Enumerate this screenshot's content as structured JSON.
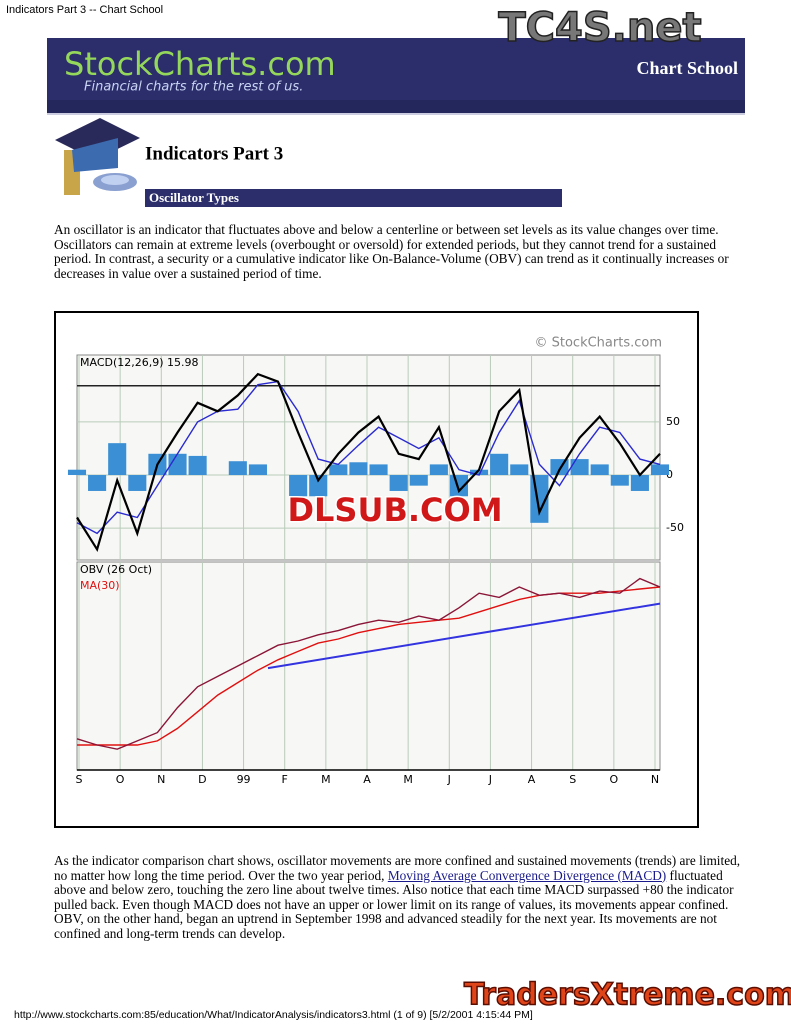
{
  "browser_header": "Indicators Part 3 -- Chart School",
  "banner": {
    "logo": "StockCharts.com",
    "tagline": "Financial charts for the rest of us.",
    "section": "Chart School"
  },
  "page": {
    "title": "Indicators Part 3",
    "subtitle": "Oscillator Types"
  },
  "intro": "An oscillator is an indicator that fluctuates above and below a centerline or between set levels as its value changes over time. Oscillators can remain at extreme levels (overbought or oversold) for extended periods, but they cannot trend for a sustained period. In contrast, a security or a cumulative indicator like On-Balance-Volume (OBV) can trend as it continually increases or decreases in value over a sustained period of time.",
  "discussion": {
    "before": "As the indicator comparison chart shows, oscillator movements are more confined and sustained movements (trends) are limited, no matter how long the time period. Over the two year period, ",
    "link": "Moving Average Convergence Divergence (MACD)",
    "after": " fluctuated above and below zero, touching the zero line about twelve times. Also notice that each time MACD surpassed +80 the indicator pulled back. Even though MACD does not have an upper or lower limit on its range of values, its movements appear confined. OBV, on the other hand, began an uptrend in September 1998 and advanced steadily for the next year. Its movements are not confined and long-term trends can develop."
  },
  "chart_data": {
    "type": "line",
    "copyright": "© StockCharts.com",
    "grid": true,
    "categories": [
      "S",
      "O",
      "N",
      "D",
      "99",
      "F",
      "M",
      "A",
      "M",
      "J",
      "J",
      "A",
      "S",
      "O",
      "N"
    ],
    "panels": [
      {
        "label": "MACD(12,26,9) 15.98",
        "ylim": [
          -80,
          113
        ],
        "yticks": [
          50,
          0,
          -50
        ],
        "hline": 84,
        "series": [
          {
            "type": "bar",
            "color": "#3b8fd4",
            "values": [
              5,
              -15,
              30,
              -15,
              20,
              20,
              18,
              0,
              13,
              10,
              0,
              -20,
              -20,
              10,
              12,
              10,
              -15,
              -10,
              10,
              -20,
              5,
              20,
              10,
              -45,
              15,
              15,
              10,
              -10,
              -15,
              10
            ]
          },
          {
            "type": "line",
            "color": "#2a2ad0",
            "values": [
              -45,
              -55,
              -35,
              -40,
              -10,
              20,
              50,
              60,
              62,
              85,
              88,
              60,
              15,
              10,
              28,
              45,
              35,
              25,
              35,
              5,
              0,
              40,
              70,
              10,
              -10,
              20,
              45,
              40,
              15,
              10
            ]
          },
          {
            "type": "line",
            "color": "#000000",
            "values": [
              -40,
              -70,
              -5,
              -55,
              10,
              40,
              68,
              60,
              75,
              95,
              88,
              40,
              -5,
              20,
              40,
              55,
              20,
              15,
              45,
              -15,
              5,
              60,
              80,
              -35,
              5,
              35,
              55,
              30,
              0,
              20
            ]
          }
        ]
      },
      {
        "label": "OBV (26 Oct)",
        "ylim": [
          0,
          100
        ],
        "series": [
          {
            "type": "line",
            "name": "MA(30)",
            "color": "#e01010",
            "values": [
              12,
              12,
              12,
              12,
              14,
              20,
              28,
              36,
              42,
              48,
              53,
              57,
              61,
              63,
              66,
              68,
              70,
              71,
              72,
              73,
              76,
              79,
              82,
              84,
              85,
              85,
              85,
              86,
              87,
              88
            ]
          },
          {
            "type": "line",
            "color": "#8b1538",
            "values": [
              15,
              12,
              10,
              14,
              18,
              30,
              40,
              45,
              50,
              55,
              60,
              62,
              65,
              67,
              70,
              72,
              71,
              74,
              72,
              78,
              85,
              83,
              88,
              84,
              85,
              83,
              86,
              85,
              92,
              88
            ]
          }
        ],
        "trendline": {
          "color": "#3333e0",
          "x": [
            9.5,
            29
          ],
          "values": [
            49,
            80
          ]
        }
      }
    ]
  },
  "watermarks": {
    "chart": "DLSUB.COM",
    "top": "TC4S.net",
    "bottom": "TradersXtreme.com"
  },
  "footer": "http://www.stockcharts.com:85/education/What/IndicatorAnalysis/indicators3.html (1 of 9) [5/2/2001 4:15:44 PM]"
}
